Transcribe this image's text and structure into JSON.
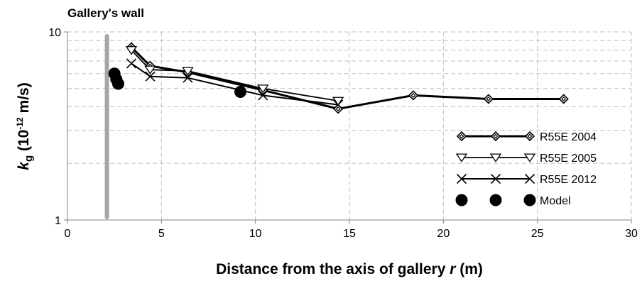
{
  "chart_data": {
    "type": "line",
    "title": "",
    "xlabel": "Distance from the axis of gallery r (m)",
    "xlabel_parts": {
      "before": "Distance from the axis of gallery ",
      "italic": "r",
      "after": " (m)"
    },
    "ylabel": "kg (10-12 m/s)",
    "ylabel_parts": {
      "italic": "k",
      "subscript": "g",
      "rest_before_sup": " (10",
      "superscript": "-12",
      "rest_after_sup": " m/s)"
    },
    "xlim": [
      0,
      30
    ],
    "ylim": [
      1,
      10
    ],
    "yscale": "log",
    "x_ticks": [
      0,
      5,
      10,
      15,
      20,
      25,
      30
    ],
    "x_tick_labels": [
      "0",
      "5",
      "10",
      "15",
      "20",
      "25",
      "30"
    ],
    "y_ticks": [
      1,
      10
    ],
    "y_tick_labels": [
      "1",
      "10"
    ],
    "grid": true,
    "legend_position": "bottom-right",
    "annotation": {
      "text": "Gallery's wall",
      "x": 2.1
    },
    "series": [
      {
        "name": "R55E 2004",
        "marker": "diamond",
        "x": [
          3.4,
          4.4,
          6.4,
          10.4,
          14.4,
          18.4,
          22.4,
          26.4
        ],
        "y": [
          8.3,
          6.6,
          6.1,
          4.9,
          3.9,
          4.6,
          4.4,
          4.4
        ]
      },
      {
        "name": "R55E 2005",
        "marker": "triangle-down",
        "x": [
          3.4,
          4.4,
          6.4,
          10.4,
          14.4
        ],
        "y": [
          8.0,
          6.3,
          6.2,
          5.0,
          4.3
        ]
      },
      {
        "name": "R55E 2012",
        "marker": "x",
        "x": [
          3.4,
          4.4,
          6.4,
          10.4,
          14.4
        ],
        "y": [
          6.8,
          5.8,
          5.7,
          4.6,
          4.1
        ]
      },
      {
        "name": "Model",
        "marker": "circle",
        "x": [
          2.5,
          2.6,
          2.7,
          9.2
        ],
        "y": [
          6.0,
          5.6,
          5.3,
          4.8
        ]
      }
    ]
  }
}
